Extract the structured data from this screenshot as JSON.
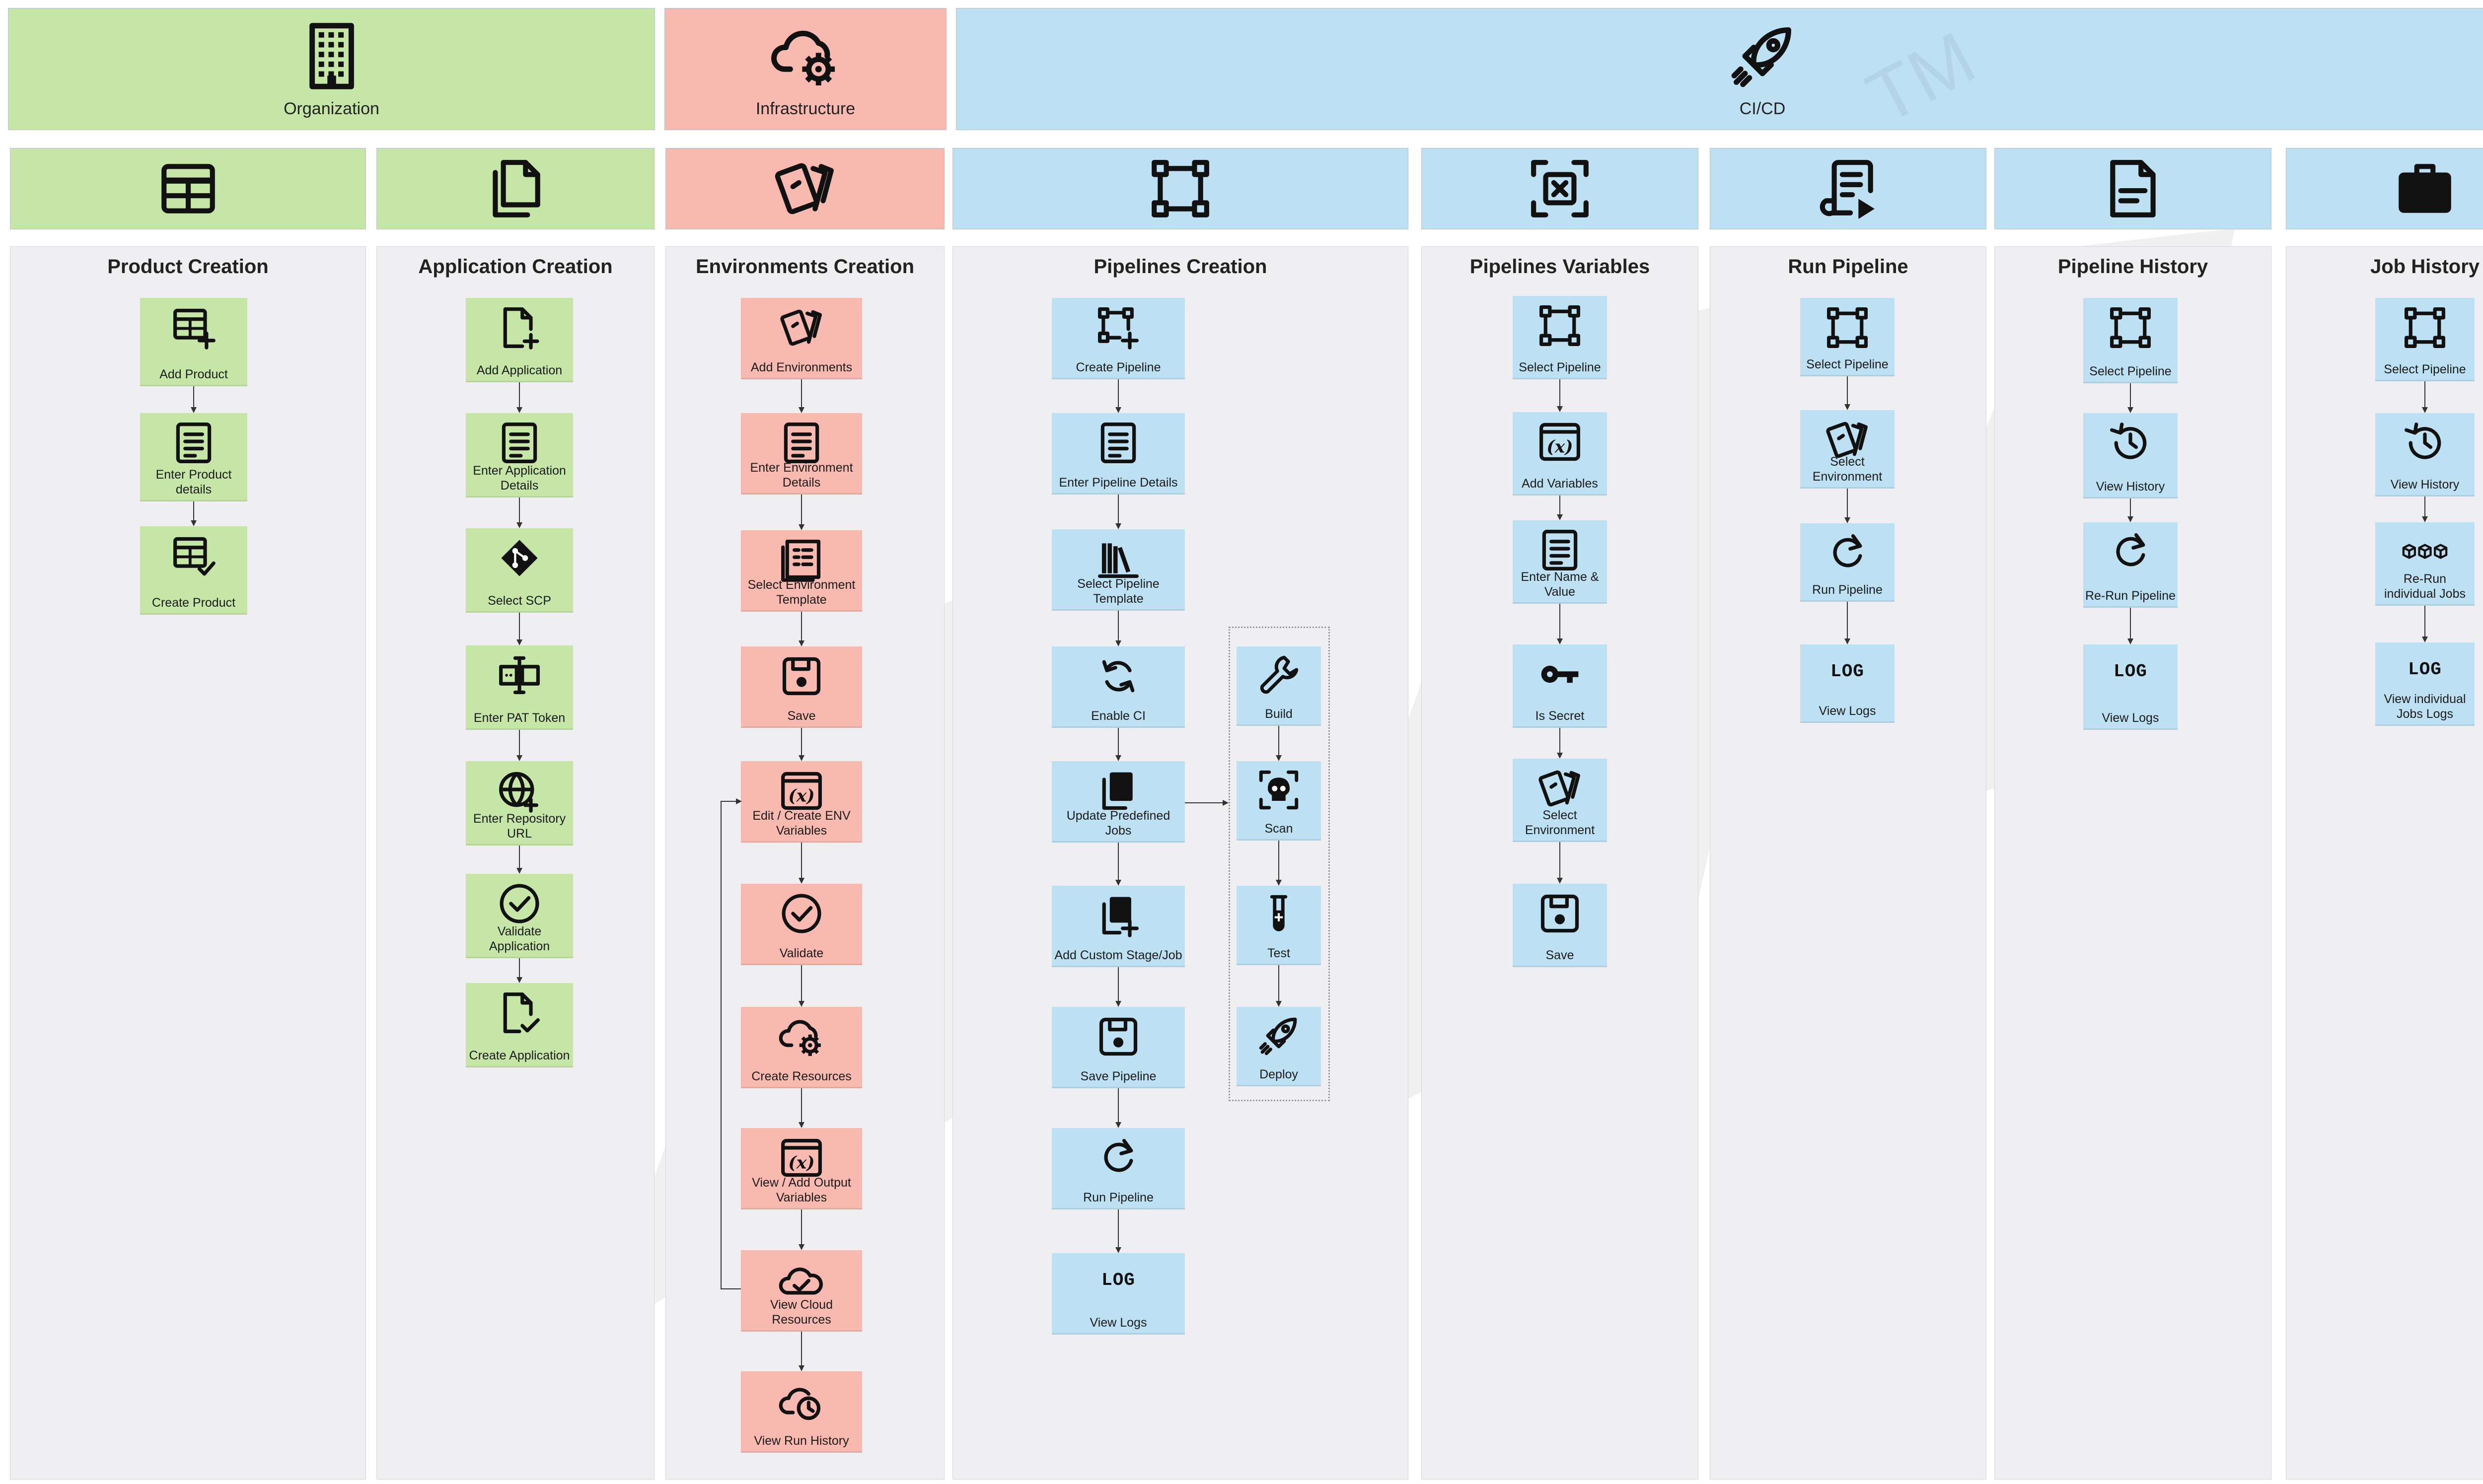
{
  "bands": [
    {
      "id": "organization",
      "label": "Organization",
      "color": "#c5e6a6",
      "icon": "building-icon"
    },
    {
      "id": "infrastructure",
      "label": "Infrastructure",
      "color": "#f8b9b0",
      "icon": "cloud-gear-icon"
    },
    {
      "id": "cicd",
      "label": "CI/CD",
      "color": "#bde0f3",
      "icon": "rocket-icon"
    }
  ],
  "watermark": {
    "text": "TM"
  },
  "columns": [
    {
      "title": "Product Creation",
      "color": "g",
      "header_icon": "table-icon",
      "steps": [
        {
          "label": "Add Product",
          "icon": "table-plus-icon"
        },
        {
          "label": "Enter Product details",
          "icon": "document-icon"
        },
        {
          "label": "Create Product",
          "icon": "table-check-icon"
        }
      ]
    },
    {
      "title": "Application Creation",
      "color": "g",
      "header_icon": "files-icon",
      "steps": [
        {
          "label": "Add Application",
          "icon": "file-plus-icon"
        },
        {
          "label": "Enter Application Details",
          "icon": "document-icon"
        },
        {
          "label": "Select SCP",
          "icon": "git-icon"
        },
        {
          "label": "Enter PAT Token",
          "icon": "token-icon"
        },
        {
          "label": "Enter Repository URL",
          "icon": "globe-icon"
        },
        {
          "label": "Validate Application",
          "icon": "check-circle-icon"
        },
        {
          "label": "Create Application",
          "icon": "file-check-icon"
        }
      ]
    },
    {
      "title": "Environments Creation",
      "color": "r",
      "header_icon": "cards-icon",
      "steps": [
        {
          "label": "Add Environments",
          "icon": "cards-icon"
        },
        {
          "label": "Enter Environment Details",
          "icon": "document-icon"
        },
        {
          "label": "Select Environment Template",
          "icon": "template-icon"
        },
        {
          "label": "Save",
          "icon": "save-icon"
        },
        {
          "label": "Edit / Create ENV Variables",
          "icon": "variable-icon"
        },
        {
          "label": "Validate",
          "icon": "check-circle-icon"
        },
        {
          "label": "Create Resources",
          "icon": "cloud-gear-icon"
        },
        {
          "label": "View / Add Output Variables",
          "icon": "variable-icon"
        },
        {
          "label": "View Cloud Resources",
          "icon": "cloud-check-icon"
        },
        {
          "label": "View Run History",
          "icon": "cloud-clock-icon"
        }
      ]
    },
    {
      "title": "Pipelines Creation",
      "color": "b",
      "header_icon": "pipeline-icon",
      "steps": [
        {
          "label": "Create Pipeline",
          "icon": "pipeline-plus-icon"
        },
        {
          "label": "Enter Pipeline Details",
          "icon": "document-icon"
        },
        {
          "label": "Select Pipeline Template",
          "icon": "books-icon"
        },
        {
          "label": "Enable CI",
          "icon": "sync-icon"
        },
        {
          "label": "Update Predefined Jobs",
          "icon": "copy-icon"
        },
        {
          "label": "Add Custom Stage/Job",
          "icon": "copy-plus-icon"
        },
        {
          "label": "Save Pipeline",
          "icon": "save-icon"
        },
        {
          "label": "Run Pipeline",
          "icon": "rerun-icon"
        },
        {
          "label": "View Logs",
          "icon": "log-icon"
        }
      ],
      "jobs": [
        {
          "label": "Build",
          "icon": "wrench-icon"
        },
        {
          "label": "Scan",
          "icon": "skull-scan-icon"
        },
        {
          "label": "Test",
          "icon": "test-tube-icon"
        },
        {
          "label": "Deploy",
          "icon": "rocket-icon"
        }
      ]
    },
    {
      "title": "Pipelines  Variables",
      "color": "b",
      "header_icon": "variables-frame-icon",
      "steps": [
        {
          "label": "Select Pipeline",
          "icon": "pipeline-icon"
        },
        {
          "label": "Add Variables",
          "icon": "variable-icon"
        },
        {
          "label": "Enter Name & Value",
          "icon": "document-icon"
        },
        {
          "label": "Is Secret",
          "icon": "key-icon"
        },
        {
          "label": "Select Environment",
          "icon": "cards-icon"
        },
        {
          "label": "Save",
          "icon": "save-icon"
        }
      ]
    },
    {
      "title": "Run Pipeline",
      "color": "b",
      "header_icon": "script-play-icon",
      "steps": [
        {
          "label": "Select Pipeline",
          "icon": "pipeline-icon"
        },
        {
          "label": "Select Environment",
          "icon": "cards-icon"
        },
        {
          "label": "Run Pipeline",
          "icon": "rerun-icon"
        },
        {
          "label": "View Logs",
          "icon": "log-icon"
        }
      ]
    },
    {
      "title": "Pipeline History",
      "color": "b",
      "header_icon": "file-lines-icon",
      "steps": [
        {
          "label": "Select Pipeline",
          "icon": "pipeline-icon"
        },
        {
          "label": "View History",
          "icon": "history-icon"
        },
        {
          "label": "Re-Run Pipeline",
          "icon": "rerun-icon"
        },
        {
          "label": "View Logs",
          "icon": "log-icon"
        }
      ]
    },
    {
      "title": "Job History",
      "color": "b",
      "header_icon": "briefcase-icon",
      "steps": [
        {
          "label": "Select Pipeline",
          "icon": "pipeline-icon"
        },
        {
          "label": "View History",
          "icon": "history-icon"
        },
        {
          "label": "Re-Run individual Jobs",
          "icon": "cubes-icon"
        },
        {
          "label": "View individual Jobs Logs",
          "icon": "log-icon"
        }
      ]
    }
  ],
  "log_text": "LOG"
}
